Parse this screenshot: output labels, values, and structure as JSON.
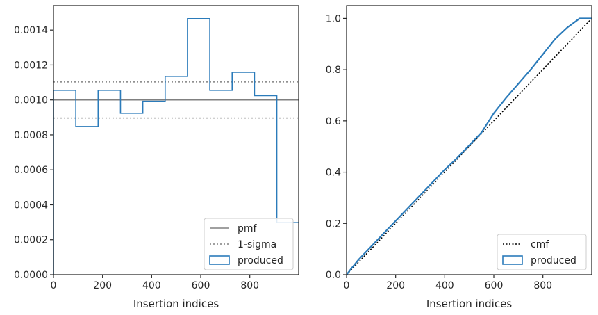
{
  "colors": {
    "produced": "#2b7bba",
    "pmf": "#808080",
    "sigma": "#808080",
    "cmf": "#000000",
    "axes": "#262626"
  },
  "chart_data": [
    {
      "type": "histogram-step",
      "title": "",
      "xlabel": "Insertion indices",
      "ylabel": "",
      "xlim": [
        0,
        999
      ],
      "ylim": [
        0,
        0.00154
      ],
      "xticks": [
        0,
        200,
        400,
        600,
        800
      ],
      "xtick_labels": [
        "0",
        "200",
        "400",
        "600",
        "800"
      ],
      "yticks": [
        0,
        0.0002,
        0.0004,
        0.0006,
        0.0008,
        0.001,
        0.0012,
        0.0014
      ],
      "ytick_labels": [
        "0.0000",
        "0.0002",
        "0.0004",
        "0.0006",
        "0.0008",
        "0.0010",
        "0.0012",
        "0.0014"
      ],
      "bin_edges": [
        0,
        91,
        182,
        273,
        364,
        455,
        546,
        637,
        728,
        819,
        910,
        1001
      ],
      "values": [
        0.001055,
        0.000848,
        0.001055,
        0.000924,
        0.000992,
        0.001135,
        0.001465,
        0.001055,
        0.001158,
        0.001025,
        0.000298
      ],
      "pmf": 0.001,
      "sigma_bounds": [
        0.000897,
        0.001103
      ],
      "grid": false,
      "legend_position": "lower-right",
      "legend": [
        {
          "key": "pmf",
          "label": "pmf"
        },
        {
          "key": "sigma",
          "label": "1-sigma"
        },
        {
          "key": "produced",
          "label": "produced"
        }
      ]
    },
    {
      "type": "line",
      "title": "",
      "xlabel": "Insertion indices",
      "ylabel": "",
      "xlim": [
        0,
        999
      ],
      "ylim": [
        0,
        1.05
      ],
      "xticks": [
        0,
        200,
        400,
        600,
        800
      ],
      "xtick_labels": [
        "0",
        "200",
        "400",
        "600",
        "800"
      ],
      "yticks": [
        0,
        0.2,
        0.4,
        0.6,
        0.8,
        1.0
      ],
      "ytick_labels": [
        "0.0",
        "0.2",
        "0.4",
        "0.6",
        "0.8",
        "1.0"
      ],
      "cmf_x": [
        0,
        999
      ],
      "cmf_y": [
        0,
        1.0
      ],
      "produced_x": [
        0,
        20,
        50,
        80,
        100,
        150,
        200,
        250,
        300,
        350,
        400,
        450,
        500,
        550,
        560,
        600,
        650,
        700,
        750,
        800,
        850,
        900,
        950,
        999
      ],
      "produced_y": [
        0,
        0.025,
        0.06,
        0.09,
        0.11,
        0.16,
        0.21,
        0.26,
        0.31,
        0.36,
        0.41,
        0.455,
        0.505,
        0.555,
        0.57,
        0.63,
        0.69,
        0.745,
        0.8,
        0.86,
        0.92,
        0.965,
        1.0,
        1.0
      ],
      "grid": false,
      "legend_position": "lower-right",
      "legend": [
        {
          "key": "cmf",
          "label": "cmf"
        },
        {
          "key": "produced",
          "label": "produced"
        }
      ]
    }
  ]
}
